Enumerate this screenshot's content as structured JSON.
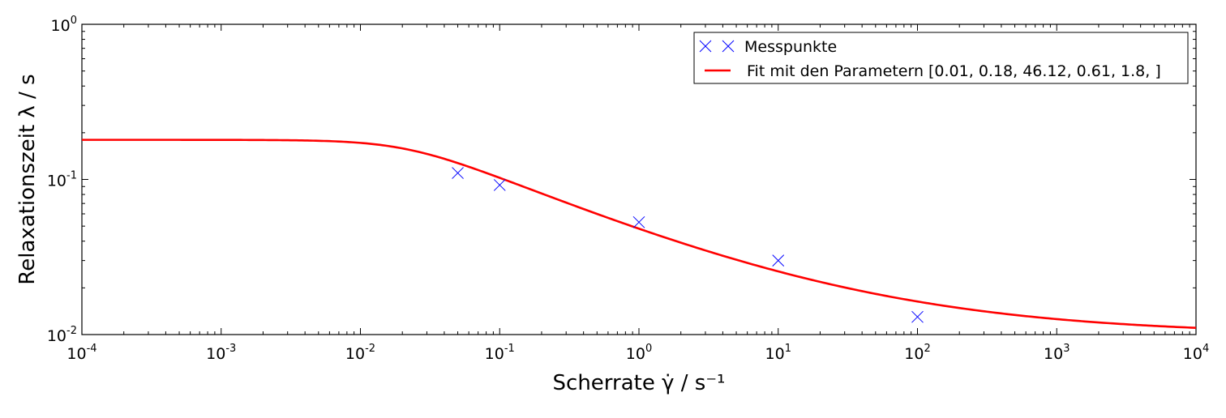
{
  "chart_data": {
    "type": "scatter",
    "xlabel": "Scherrate γ̇ / s⁻¹",
    "ylabel": "Relaxationszeit λ / s",
    "xscale": "log",
    "yscale": "log",
    "xlim": [
      0.0001,
      10000
    ],
    "ylim": [
      0.01,
      1
    ],
    "grid": false,
    "legend_position": "top-right",
    "x_ticks": [
      {
        "base": "10",
        "exp": "-4"
      },
      {
        "base": "10",
        "exp": "-3"
      },
      {
        "base": "10",
        "exp": "-2"
      },
      {
        "base": "10",
        "exp": "-1"
      },
      {
        "base": "10",
        "exp": "0"
      },
      {
        "base": "10",
        "exp": "1"
      },
      {
        "base": "10",
        "exp": "2"
      },
      {
        "base": "10",
        "exp": "3"
      },
      {
        "base": "10",
        "exp": "4"
      }
    ],
    "y_ticks": [
      {
        "base": "10",
        "exp": "-2"
      },
      {
        "base": "10",
        "exp": "-1"
      },
      {
        "base": "10",
        "exp": "0"
      }
    ],
    "series": [
      {
        "name": "Messpunkte",
        "kind": "markers",
        "marker": "x",
        "color": "#0000ff",
        "x": [
          0.05,
          0.1,
          1,
          10,
          100
        ],
        "y": [
          0.11,
          0.092,
          0.053,
          0.03,
          0.013
        ]
      },
      {
        "name": "Fit mit den Parametern [0.01, 0.18, 46.12, 0.61, 1.8, ]",
        "kind": "line",
        "color": "#ff0000",
        "model": "carreau-yasuda",
        "params": [
          0.01,
          0.18,
          46.12,
          0.61,
          1.8
        ]
      }
    ]
  }
}
